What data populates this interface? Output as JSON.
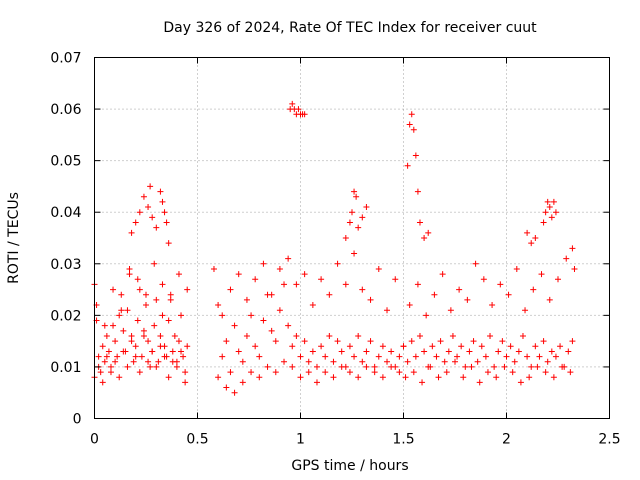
{
  "chart_data": {
    "type": "scatter",
    "title": "Day 326 of 2024, Rate Of TEC Index for receiver cuut",
    "xlabel": "GPS time / hours",
    "ylabel": "ROTI / TECUs",
    "xlim": [
      0,
      2.5
    ],
    "ylim": [
      0,
      0.07
    ],
    "xticks": [
      "0",
      "0.5",
      "1",
      "1.5",
      "2",
      "2.5"
    ],
    "yticks": [
      "0",
      "0.01",
      "0.02",
      "0.03",
      "0.04",
      "0.05",
      "0.06",
      "0.07"
    ],
    "grid": true,
    "marker": "+",
    "colors": {
      "points": "#ff0000",
      "grid": "#a0a0a0",
      "frame": "#000000"
    },
    "series": [
      {
        "name": "ROTI",
        "x": [
          0.0,
          0.01,
          0.02,
          0.03,
          0.04,
          0.05,
          0.06,
          0.07,
          0.08,
          0.09,
          0.1,
          0.11,
          0.12,
          0.13,
          0.14,
          0.15,
          0.16,
          0.17,
          0.18,
          0.19,
          0.2,
          0.21,
          0.22,
          0.23,
          0.24,
          0.25,
          0.26,
          0.27,
          0.28,
          0.29,
          0.3,
          0.31,
          0.32,
          0.33,
          0.34,
          0.35,
          0.36,
          0.37,
          0.38,
          0.39,
          0.4,
          0.41,
          0.42,
          0.43,
          0.44,
          0.45,
          0.0,
          0.02,
          0.04,
          0.06,
          0.08,
          0.1,
          0.12,
          0.14,
          0.16,
          0.18,
          0.2,
          0.22,
          0.24,
          0.26,
          0.28,
          0.3,
          0.32,
          0.34,
          0.36,
          0.38,
          0.4,
          0.42,
          0.44,
          0.01,
          0.05,
          0.09,
          0.13,
          0.17,
          0.21,
          0.25,
          0.29,
          0.33,
          0.37,
          0.41,
          0.45,
          0.18,
          0.2,
          0.22,
          0.24,
          0.26,
          0.27,
          0.28,
          0.3,
          0.32,
          0.33,
          0.34,
          0.35,
          0.36,
          0.58,
          0.6,
          0.62,
          0.64,
          0.66,
          0.68,
          0.7,
          0.72,
          0.74,
          0.76,
          0.78,
          0.8,
          0.82,
          0.84,
          0.86,
          0.88,
          0.9,
          0.92,
          0.94,
          0.96,
          0.98,
          1.0,
          1.02,
          1.04,
          1.06,
          1.08,
          1.1,
          1.12,
          1.14,
          1.16,
          1.18,
          1.2,
          1.22,
          1.24,
          1.26,
          1.28,
          1.3,
          1.32,
          1.34,
          1.36,
          1.38,
          1.4,
          1.42,
          1.44,
          1.46,
          1.48,
          1.5,
          0.6,
          0.64,
          0.68,
          0.72,
          0.76,
          0.8,
          0.84,
          0.88,
          0.92,
          0.96,
          1.0,
          1.04,
          1.08,
          1.12,
          1.16,
          1.2,
          1.24,
          1.28,
          1.32,
          1.36,
          1.4,
          1.44,
          1.48,
          0.62,
          0.66,
          0.7,
          0.74,
          0.78,
          0.82,
          0.86,
          0.9,
          0.94,
          0.98,
          1.02,
          1.06,
          1.1,
          1.14,
          1.18,
          1.22,
          1.26,
          1.3,
          1.34,
          1.38,
          1.42,
          1.46,
          0.95,
          0.96,
          0.97,
          0.98,
          0.99,
          1.0,
          1.01,
          1.02,
          1.22,
          1.24,
          1.25,
          1.26,
          1.27,
          1.28,
          1.3,
          1.32,
          1.52,
          1.53,
          1.54,
          1.55,
          1.56,
          1.57,
          1.58,
          1.6,
          1.62,
          1.5,
          1.52,
          1.54,
          1.56,
          1.58,
          1.6,
          1.62,
          1.64,
          1.66,
          1.68,
          1.7,
          1.72,
          1.74,
          1.76,
          1.78,
          1.8,
          1.82,
          1.84,
          1.86,
          1.88,
          1.9,
          1.92,
          1.94,
          1.96,
          1.98,
          2.0,
          2.02,
          2.04,
          2.06,
          2.08,
          2.1,
          2.12,
          2.14,
          2.16,
          2.18,
          2.2,
          2.22,
          2.24,
          2.26,
          2.28,
          2.3,
          2.32,
          1.51,
          1.55,
          1.59,
          1.63,
          1.67,
          1.71,
          1.75,
          1.79,
          1.83,
          1.87,
          1.91,
          1.95,
          1.99,
          2.03,
          2.07,
          2.11,
          2.15,
          2.19,
          2.23,
          2.27,
          2.31,
          1.53,
          1.57,
          1.61,
          1.65,
          1.69,
          1.73,
          1.77,
          1.81,
          1.85,
          1.89,
          1.93,
          1.97,
          2.01,
          2.05,
          2.09,
          2.13,
          2.17,
          2.21,
          2.25,
          2.29,
          2.18,
          2.19,
          2.2,
          2.21,
          2.22,
          2.23,
          2.24,
          2.1,
          2.12,
          2.14,
          2.32,
          2.33
        ],
        "y": [
          0.026,
          0.019,
          0.012,
          0.009,
          0.014,
          0.011,
          0.016,
          0.013,
          0.01,
          0.018,
          0.015,
          0.012,
          0.02,
          0.024,
          0.017,
          0.013,
          0.021,
          0.028,
          0.016,
          0.011,
          0.014,
          0.019,
          0.025,
          0.012,
          0.017,
          0.022,
          0.015,
          0.01,
          0.013,
          0.018,
          0.023,
          0.011,
          0.016,
          0.02,
          0.014,
          0.012,
          0.019,
          0.024,
          0.013,
          0.016,
          0.011,
          0.015,
          0.02,
          0.012,
          0.009,
          0.014,
          0.008,
          0.01,
          0.007,
          0.012,
          0.009,
          0.011,
          0.008,
          0.013,
          0.01,
          0.015,
          0.012,
          0.009,
          0.016,
          0.011,
          0.013,
          0.01,
          0.014,
          0.012,
          0.008,
          0.011,
          0.01,
          0.013,
          0.007,
          0.022,
          0.018,
          0.025,
          0.021,
          0.029,
          0.027,
          0.024,
          0.03,
          0.026,
          0.023,
          0.028,
          0.025,
          0.036,
          0.038,
          0.04,
          0.043,
          0.041,
          0.045,
          0.039,
          0.037,
          0.044,
          0.042,
          0.04,
          0.038,
          0.034,
          0.029,
          0.022,
          0.012,
          0.015,
          0.009,
          0.018,
          0.013,
          0.011,
          0.016,
          0.02,
          0.014,
          0.012,
          0.019,
          0.024,
          0.017,
          0.015,
          0.021,
          0.026,
          0.018,
          0.014,
          0.016,
          0.012,
          0.015,
          0.011,
          0.013,
          0.01,
          0.014,
          0.012,
          0.016,
          0.011,
          0.015,
          0.013,
          0.01,
          0.014,
          0.012,
          0.016,
          0.011,
          0.013,
          0.015,
          0.01,
          0.012,
          0.014,
          0.011,
          0.013,
          0.01,
          0.012,
          0.014,
          0.008,
          0.006,
          0.005,
          0.007,
          0.009,
          0.008,
          0.01,
          0.009,
          0.011,
          0.01,
          0.008,
          0.009,
          0.007,
          0.009,
          0.008,
          0.01,
          0.009,
          0.008,
          0.01,
          0.009,
          0.008,
          0.01,
          0.009,
          0.02,
          0.025,
          0.028,
          0.023,
          0.027,
          0.03,
          0.024,
          0.029,
          0.031,
          0.026,
          0.028,
          0.022,
          0.027,
          0.024,
          0.03,
          0.026,
          0.032,
          0.025,
          0.023,
          0.029,
          0.021,
          0.027,
          0.06,
          0.061,
          0.06,
          0.059,
          0.06,
          0.059,
          0.059,
          0.059,
          0.035,
          0.038,
          0.04,
          0.044,
          0.043,
          0.037,
          0.039,
          0.041,
          0.049,
          0.057,
          0.059,
          0.056,
          0.051,
          0.044,
          0.038,
          0.035,
          0.036,
          0.014,
          0.011,
          0.015,
          0.012,
          0.016,
          0.013,
          0.01,
          0.014,
          0.012,
          0.015,
          0.011,
          0.013,
          0.016,
          0.012,
          0.014,
          0.01,
          0.013,
          0.015,
          0.011,
          0.014,
          0.012,
          0.016,
          0.01,
          0.013,
          0.015,
          0.012,
          0.014,
          0.011,
          0.013,
          0.016,
          0.012,
          0.01,
          0.014,
          0.012,
          0.015,
          0.011,
          0.013,
          0.012,
          0.014,
          0.01,
          0.013,
          0.015,
          0.008,
          0.009,
          0.007,
          0.01,
          0.008,
          0.009,
          0.011,
          0.008,
          0.01,
          0.007,
          0.009,
          0.008,
          0.01,
          0.009,
          0.007,
          0.008,
          0.01,
          0.009,
          0.008,
          0.01,
          0.009,
          0.022,
          0.026,
          0.02,
          0.024,
          0.028,
          0.021,
          0.025,
          0.023,
          0.03,
          0.027,
          0.022,
          0.026,
          0.024,
          0.029,
          0.021,
          0.025,
          0.028,
          0.023,
          0.027,
          0.031,
          0.038,
          0.04,
          0.042,
          0.041,
          0.039,
          0.042,
          0.04,
          0.036,
          0.034,
          0.035,
          0.033,
          0.029
        ]
      }
    ]
  }
}
